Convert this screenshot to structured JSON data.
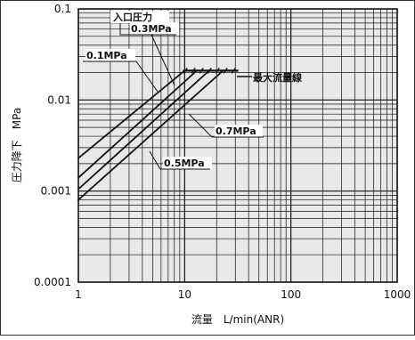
{
  "chart_data": {
    "type": "line",
    "xscale": "log",
    "yscale": "log",
    "xlim": [
      1,
      1000
    ],
    "ylim": [
      0.0001,
      0.1
    ],
    "grid": true,
    "xlabel": "流量　L/min(ANR)",
    "ylabel": "圧力降下　MPa",
    "x_ticks": [
      1,
      10,
      100,
      1000
    ],
    "x_tick_labels": [
      "1",
      "10",
      "100",
      "1000"
    ],
    "y_ticks": [
      0.0001,
      0.001,
      0.01,
      0.1
    ],
    "y_tick_labels": [
      "0.0001",
      "0.001",
      "0.01",
      "0.1"
    ],
    "series": [
      {
        "name": "0.1MPa",
        "x": [
          1,
          10
        ],
        "y": [
          0.0023,
          0.021
        ]
      },
      {
        "name": "0.3MPa",
        "x": [
          1,
          13
        ],
        "y": [
          0.0014,
          0.021
        ]
      },
      {
        "name": "0.5MPa",
        "x": [
          1,
          17
        ],
        "y": [
          0.00105,
          0.021
        ]
      },
      {
        "name": "0.7MPa",
        "x": [
          1,
          23
        ],
        "y": [
          0.0008,
          0.021
        ]
      }
    ],
    "max_flow_line": {
      "name": "最大流量線",
      "x": [
        9.6,
        32
      ],
      "y": 0.021
    },
    "legend_title": "入口圧力",
    "colors": {
      "lines": "#111111",
      "plot_background": "#e9e9e9",
      "grid": "#111111"
    }
  }
}
